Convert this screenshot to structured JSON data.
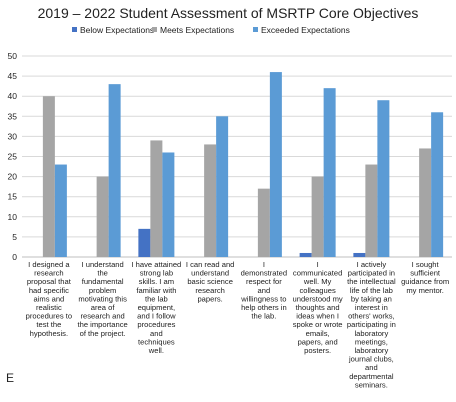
{
  "panel_letter": "E",
  "chart_data": {
    "type": "bar",
    "title": "2019 – 2022 Student Assessment of MSRTP Core Objectives",
    "xlabel": "",
    "ylabel": "",
    "ylim": [
      0,
      50
    ],
    "yticks": [
      0,
      5,
      10,
      15,
      20,
      25,
      30,
      35,
      40,
      45,
      50
    ],
    "grid": true,
    "legend_position": "top",
    "categories": [
      [
        "I designed a",
        "research",
        "proposal that",
        "had specific",
        "aims and",
        "realistic",
        "procedures to",
        "test the",
        "hypothesis."
      ],
      [
        "I understand",
        "the",
        "fundamental",
        "problem",
        "motivating this",
        "area of",
        "research and",
        "the importance",
        "of the project."
      ],
      [
        "I have attained",
        "strong lab",
        "skills. I am",
        "familiar with",
        "the lab",
        "equipment,",
        "and I follow",
        "procedures",
        "and",
        "techniques",
        "well."
      ],
      [
        "I can read and",
        "understand",
        "basic science",
        "research",
        "papers."
      ],
      [
        "I",
        "demonstrated",
        "respect for",
        "and",
        "willingness to",
        "help others in",
        "the lab."
      ],
      [
        "I",
        "communicated",
        "well. My",
        "colleagues",
        "understood my",
        "thoughts and",
        "ideas when I",
        "spoke or wrote",
        "emails,",
        "papers, and",
        "posters."
      ],
      [
        "I actively",
        "participated in",
        "the intellectual",
        "life of the lab",
        "by taking an",
        "interest in",
        "others' works,",
        "participating in",
        "laboratory",
        "meetings,",
        "laboratory",
        "journal clubs,",
        "and",
        "departmental",
        "seminars."
      ],
      [
        "I sought",
        "sufficient",
        "guidance from",
        "my mentor."
      ]
    ],
    "series": [
      {
        "name": "Below Expectations",
        "color": "#4472c4",
        "values": [
          0,
          0,
          7,
          0,
          0,
          1,
          1,
          0
        ]
      },
      {
        "name": "Meets Expectations",
        "color": "#a5a5a5",
        "values": [
          40,
          20,
          29,
          28,
          17,
          20,
          23,
          27
        ]
      },
      {
        "name": "Exceeded Expectations",
        "color": "#5b9bd5",
        "values": [
          23,
          43,
          26,
          35,
          46,
          42,
          39,
          36
        ]
      }
    ]
  }
}
